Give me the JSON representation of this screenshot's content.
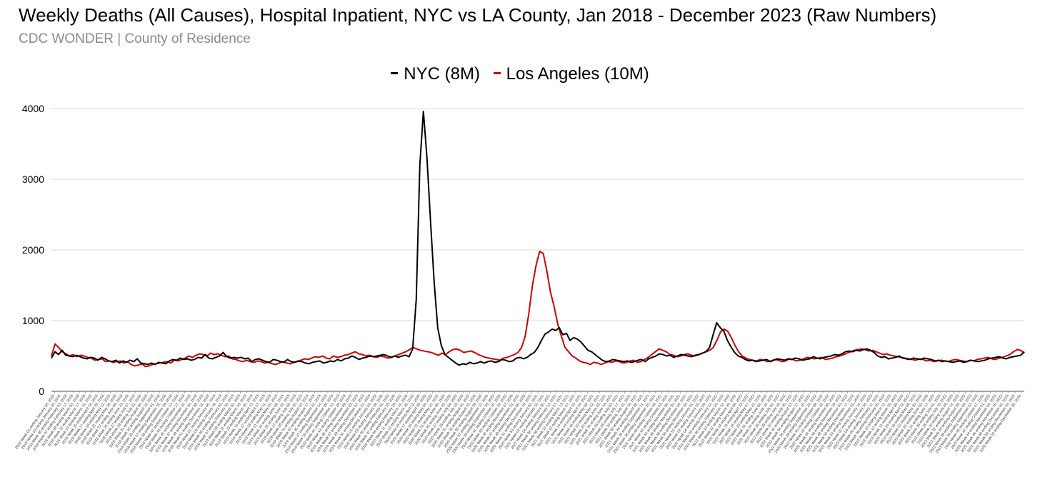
{
  "header": {
    "title": "Weekly Deaths (All Causes), Hospital Inpatient, NYC vs LA County, Jan 2018 - December 2023 (Raw Numbers)",
    "subtitle": "CDC WONDER | County of Residence"
  },
  "colors": {
    "nyc": "#000000",
    "la": "#cc0000",
    "grid": "#d9d9d9",
    "axis": "#555555"
  },
  "chart_data": {
    "type": "line",
    "title": "Weekly Deaths (All Causes), Hospital Inpatient, NYC vs LA County, Jan 2018 - December 2023 (Raw Numbers)",
    "subtitle": "CDC WONDER | County of Residence",
    "xlabel": "",
    "ylabel": "",
    "ylim": [
      0,
      4000
    ],
    "yticks": [
      0,
      1000,
      2000,
      3000,
      4000
    ],
    "grid": true,
    "legend_position": "top-center",
    "x_labels_shown": [
      "2018 Week 01 ending January 06, 2018",
      "2018 Week 03 ending January 20, 2018",
      "2018 Week 05 ending February 03, 2018",
      "2018 Week 07 ending February 17, 2018",
      "2018 Week 09 ending March 03, 2018",
      "2018 Week 11 ending March 17, 2018",
      "2018 Week 13 ending March 31, 2018",
      "2018 Week 15 ending April 14, 2018",
      "2018 Week 17 ending April 28, 2018",
      "2018 Week 19 ending May 12, 2018",
      "2018 Week 21 ending May 26, 2018",
      "2018 Week 23 ending June 09, 2018",
      "2018 Week 25 ending June 23, 2018",
      "2018 Week 27 ending July 07, 2018",
      "2018 Week 29 ending July 21, 2018",
      "2018 Week 31 ending August 04, 2018",
      "2018 Week 33 ending August 18, 2018",
      "2018 Week 35 ending September 01, 2018",
      "2018 Week 37 ending September 15, 2018",
      "2018 Week 39 ending September 29, 2018",
      "2018 Week 41 ending October 13, 2018",
      "2018 Week 43 ending October 27, 2018",
      "2018 Week 45 ending November 10, 2018",
      "2018 Week 47 ending November 24, 2018",
      "2018 Week 49 ending December 08, 2018",
      "2018 Week 51 ending December 22, 2018",
      "2019 Week 01 ending January 05, 2019",
      "2019 Week 03 ending January 19, 2019",
      "2019 Week 05 ending February 02, 2019",
      "2019 Week 07 ending February 16, 2019",
      "2019 Week 09 ending March 02, 2019",
      "2019 Week 11 ending March 16, 2019",
      "2019 Week 13 ending March 30, 2019",
      "2019 Week 15 ending April 13, 2019",
      "2019 Week 17 ending April 27, 2019",
      "2019 Week 19 ending May 11, 2019",
      "2019 Week 21 ending May 25, 2019",
      "2019 Week 23 ending June 08, 2019",
      "2019 Week 25 ending June 22, 2019",
      "2019 Week 27 ending July 06, 2019",
      "2019 Week 29 ending July 20, 2019",
      "2019 Week 31 ending August 03, 2019",
      "2019 Week 33 ending August 17, 2019",
      "2019 Week 35 ending August 31, 2019",
      "2019 Week 37 ending September 14, 2019",
      "2019 Week 39 ending September 28, 2019",
      "2019 Week 41 ending October 12, 2019",
      "2019 Week 43 ending October 26, 2019",
      "2019 Week 45 ending November 09, 2019",
      "2019 Week 47 ending November 23, 2019",
      "2019 Week 49 ending December 07, 2019",
      "2019 Week 51 ending December 21, 2019",
      "2020 Week 01 ending January 04, 2020",
      "2020 Week 03 ending January 18, 2020",
      "2020 Week 05 ending February 01, 2020",
      "2020 Week 07 ending February 15, 2020",
      "2020 Week 09 ending February 29, 2020",
      "2020 Week 11 ending March 14, 2020",
      "2020 Week 13 ending March 28, 2020",
      "2020 Week 15 ending April 11, 2020",
      "2020 Week 17 ending April 25, 2020",
      "2020 Week 19 ending May 09, 2020",
      "2020 Week 21 ending May 23, 2020",
      "2020 Week 23 ending June 06, 2020",
      "2020 Week 25 ending June 20, 2020",
      "2020 Week 27 ending July 04, 2020",
      "2020 Week 29 ending July 18, 2020",
      "2020 Week 31 ending August 01, 2020",
      "2020 Week 33 ending August 15, 2020",
      "2020 Week 35 ending August 29, 2020",
      "2020 Week 37 ending September 12, 2020",
      "2020 Week 39 ending September 26, 2020",
      "2020 Week 41 ending October 10, 2020",
      "2020 Week 43 ending October 24, 2020",
      "2020 Week 45 ending November 07, 2020",
      "2020 Week 47 ending November 21, 2020",
      "2020 Week 49 ending December 05, 2020",
      "2020 Week 51 ending December 19, 2020",
      "2020 Week 53 ending January 02, 2021",
      "2021 Week 02 ending January 16, 2021",
      "2021 Week 04 ending January 30, 2021",
      "2021 Week 06 ending February 13, 2021",
      "2021 Week 08 ending February 27, 2021",
      "2021 Week 10 ending March 13, 2021",
      "2021 Week 12 ending March 27, 2021",
      "2021 Week 14 ending April 10, 2021",
      "2021 Week 16 ending April 24, 2021",
      "2021 Week 18 ending May 08, 2021",
      "2021 Week 20 ending May 22, 2021",
      "2021 Week 22 ending June 05, 2021",
      "2021 Week 24 ending June 19, 2021",
      "2021 Week 26 ending July 03, 2021",
      "2021 Week 28 ending July 17, 2021",
      "2021 Week 30 ending July 31, 2021",
      "2021 Week 32 ending August 14, 2021",
      "2021 Week 34 ending August 28, 2021",
      "2021 Week 36 ending September 11, 2021",
      "2021 Week 38 ending September 25, 2021",
      "2021 Week 40 ending October 09, 2021",
      "2021 Week 42 ending October 23, 2021",
      "2021 Week 44 ending November 06, 2021",
      "2021 Week 46 ending November 20, 2021",
      "2021 Week 48 ending December 04, 2021",
      "2021 Week 50 ending December 18, 2021",
      "2021 Week 52 ending January 01, 2022",
      "2022 Week 02 ending January 15, 2022",
      "2022 Week 04 ending January 29, 2022",
      "2022 Week 06 ending February 12, 2022",
      "2022 Week 08 ending February 26, 2022",
      "2022 Week 10 ending March 12, 2022",
      "2022 Week 12 ending March 26, 2022",
      "2022 Week 14 ending April 09, 2022",
      "2022 Week 16 ending April 23, 2022",
      "2022 Week 18 ending May 07, 2022",
      "2022 Week 20 ending May 21, 2022",
      "2022 Week 22 ending June 04, 2022",
      "2022 Week 24 ending June 18, 2022",
      "2022 Week 26 ending July 02, 2022",
      "2022 Week 28 ending July 16, 2022",
      "2022 Week 30 ending July 30, 2022",
      "2022 Week 32 ending August 13, 2022",
      "2022 Week 34 ending August 27, 2022",
      "2022 Week 36 ending September 10, 2022",
      "2022 Week 38 ending September 24, 2022",
      "2022 Week 40 ending October 08, 2022",
      "2022 Week 42 ending October 22, 2022",
      "2022 Week 44 ending November 05, 2022",
      "2022 Week 46 ending November 19, 2022",
      "2022 Week 48 ending December 03, 2022",
      "2022 Week 50 ending December 17, 2022",
      "2022 Week 52 ending December 31, 2022",
      "2023 Week 02 ending January 14, 2023",
      "2023 Week 04 ending January 28, 2023",
      "2023 Week 06 ending February 11, 2023",
      "2023 Week 08 ending February 25, 2023",
      "2023 Week 10 ending March 11, 2023",
      "2023 Week 12 ending March 25, 2023",
      "2023 Week 14 ending April 08, 2023",
      "2023 Week 16 ending April 22, 2023",
      "2023 Week 18 ending May 06, 2023",
      "2023 Week 20 ending May 20, 2023",
      "2023 Week 22 ending June 03, 2023",
      "2023 Week 24 ending June 17, 2023",
      "2023 Week 26 ending July 01, 2023",
      "2023 Week 28 ending July 15, 2023",
      "2023 Week 30 ending July 29, 2023",
      "2023 Week 32 ending August 12, 2023",
      "2023 Week 34 ending August 26, 2023",
      "2023 Week 36 ending September 09, 2023",
      "2023 Week 38 ending September 23, 2023",
      "2023 Week 40 ending October 07, 2023",
      "2023 Week 42 ending October 21, 2023",
      "2023 Week 44 ending November 04, 2023",
      "2023 Week 46 ending November 18, 2023",
      "2023 Week 48 ending December 02, 2023",
      "2023 Week 50 ending December 16, 2023",
      "2023 Week 52 ending December 30, 2023"
    ],
    "series": [
      {
        "name": "NYC (8M)",
        "color": "#000000",
        "values": [
          470,
          560,
          520,
          580,
          510,
          500,
          490,
          510,
          490,
          470,
          460,
          480,
          470,
          440,
          480,
          460,
          430,
          420,
          440,
          400,
          430,
          410,
          440,
          420,
          460,
          400,
          390,
          380,
          400,
          380,
          410,
          400,
          390,
          430,
          450,
          440,
          470,
          450,
          460,
          440,
          450,
          480,
          470,
          520,
          470,
          460,
          480,
          500,
          550,
          490,
          470,
          480,
          470,
          480,
          460,
          470,
          420,
          450,
          460,
          440,
          420,
          410,
          450,
          440,
          420,
          410,
          450,
          420,
          410,
          430,
          420,
          400,
          390,
          410,
          420,
          430,
          400,
          410,
          430,
          420,
          450,
          430,
          460,
          470,
          500,
          480,
          450,
          470,
          480,
          500,
          490,
          500,
          510,
          520,
          500,
          480,
          500,
          480,
          500,
          510,
          490,
          600,
          1300,
          3200,
          3960,
          3300,
          2400,
          1550,
          900,
          650,
          520,
          480,
          440,
          400,
          370,
          390,
          380,
          410,
          390,
          400,
          420,
          400,
          420,
          430,
          410,
          420,
          450,
          440,
          420,
          430,
          470,
          480,
          460,
          480,
          520,
          550,
          620,
          720,
          810,
          840,
          880,
          860,
          900,
          800,
          820,
          720,
          760,
          740,
          700,
          640,
          580,
          560,
          520,
          480,
          440,
          420,
          430,
          450,
          440,
          430,
          420,
          430,
          410,
          420,
          440,
          450,
          420,
          460,
          480,
          500,
          530,
          520,
          500,
          510,
          480,
          500,
          520,
          510,
          500,
          490,
          510,
          520,
          540,
          560,
          620,
          800,
          970,
          900,
          850,
          720,
          630,
          550,
          500,
          480,
          450,
          430,
          440,
          420,
          430,
          440,
          450,
          420,
          440,
          460,
          450,
          440,
          460,
          450,
          470,
          460,
          440,
          450,
          460,
          490,
          470,
          460,
          480,
          490,
          500,
          520,
          510,
          530,
          560,
          570,
          560,
          580,
          570,
          590,
          600,
          580,
          550,
          500,
          480,
          490,
          460,
          470,
          480,
          500,
          470,
          460,
          450,
          470,
          460,
          450,
          470,
          460,
          450,
          430,
          440,
          420,
          430,
          420,
          410,
          420,
          430,
          410,
          420,
          440,
          430,
          420,
          430,
          440,
          460,
          470,
          480,
          490,
          470,
          460,
          480,
          490,
          500,
          510,
          560
        ]
      },
      {
        "name": "Los Angeles (10M)",
        "color": "#cc0000",
        "values": [
          500,
          670,
          620,
          560,
          530,
          500,
          520,
          490,
          510,
          500,
          480,
          470,
          440,
          450,
          460,
          420,
          430,
          410,
          420,
          430,
          400,
          420,
          380,
          360,
          370,
          390,
          350,
          360,
          380,
          390,
          400,
          410,
          420,
          400,
          440,
          430,
          450,
          470,
          500,
          480,
          510,
          530,
          520,
          500,
          540,
          520,
          530,
          510,
          490,
          500,
          460,
          450,
          430,
          420,
          440,
          420,
          410,
          430,
          420,
          400,
          410,
          390,
          380,
          400,
          420,
          400,
          390,
          410,
          420,
          440,
          460,
          450,
          470,
          490,
          480,
          500,
          470,
          460,
          500,
          480,
          490,
          510,
          520,
          540,
          560,
          530,
          520,
          500,
          510,
          490,
          480,
          500,
          490,
          470,
          480,
          500,
          520,
          540,
          560,
          590,
          620,
          600,
          580,
          570,
          560,
          550,
          530,
          510,
          540,
          520,
          560,
          590,
          600,
          580,
          550,
          560,
          570,
          550,
          520,
          500,
          480,
          470,
          460,
          450,
          440,
          470,
          480,
          500,
          520,
          550,
          620,
          780,
          1100,
          1500,
          1780,
          1980,
          1950,
          1700,
          1400,
          1200,
          950,
          780,
          620,
          560,
          500,
          470,
          430,
          410,
          400,
          380,
          410,
          400,
          380,
          400,
          420,
          410,
          430,
          420,
          400,
          410,
          430,
          440,
          410,
          420,
          450,
          480,
          520,
          560,
          600,
          580,
          560,
          520,
          510,
          490,
          500,
          520,
          530,
          510,
          500,
          520,
          540,
          560,
          580,
          620,
          720,
          840,
          880,
          850,
          760,
          650,
          560,
          500,
          470,
          450,
          440,
          430,
          450,
          440,
          420,
          430,
          450,
          440,
          420,
          430,
          460,
          450,
          430,
          440,
          460,
          480,
          470,
          460,
          470,
          480,
          450,
          460,
          470,
          490,
          500,
          520,
          540,
          560,
          580,
          590,
          600,
          590,
          570,
          580,
          560,
          540,
          520,
          530,
          510,
          500,
          490,
          480,
          470,
          460,
          450,
          440,
          460,
          450,
          430,
          440,
          420,
          430,
          440,
          430,
          420,
          440,
          450,
          440,
          430,
          420,
          440,
          430,
          450,
          460,
          470,
          480,
          460,
          450,
          470,
          480,
          500,
          520,
          560,
          590,
          580,
          540
        ]
      }
    ]
  }
}
